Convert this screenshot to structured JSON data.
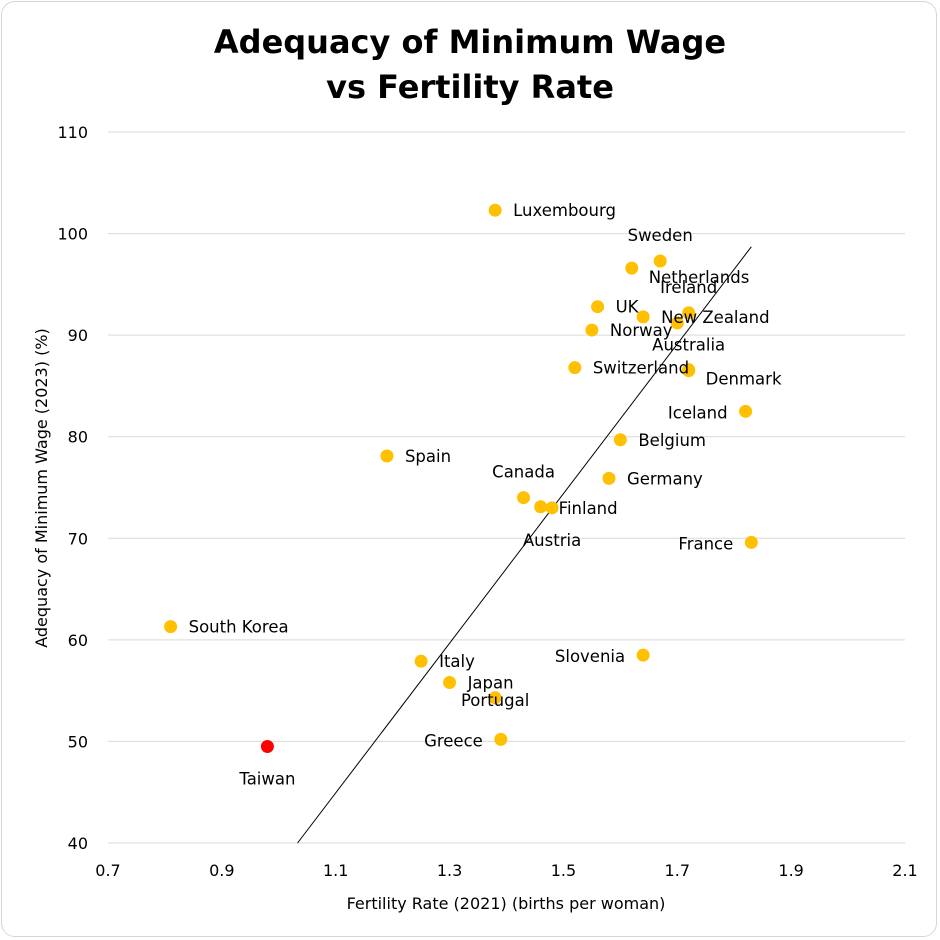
{
  "chart_data": {
    "type": "scatter",
    "title": [
      "Adequacy of Minimum Wage",
      "vs Fertility Rate"
    ],
    "xlabel": "Fertility Rate (2021) (births per woman)",
    "ylabel": "Adequacy of Minimum Wage (2023) (%)",
    "xlim": [
      0.7,
      2.1
    ],
    "ylim": [
      40,
      110
    ],
    "xticks": [
      "0.7",
      "0.9",
      "1.1",
      "1.3",
      "1.5",
      "1.7",
      "1.9",
      "2.1"
    ],
    "yticks": [
      "40",
      "50",
      "60",
      "70",
      "80",
      "90",
      "100",
      "110"
    ],
    "grid": true,
    "colors": {
      "point": "#FFC000",
      "highlight": "#FF0000",
      "highlight_label": "#FF0000",
      "trendline": "#000000"
    },
    "points": [
      {
        "label": "Luxembourg",
        "x": 1.38,
        "y": 102.3,
        "pos": "right"
      },
      {
        "label": "Sweden",
        "x": 1.67,
        "y": 97.3,
        "pos": "above"
      },
      {
        "label": "Netherlands",
        "x": 1.62,
        "y": 96.6,
        "pos": "right-below"
      },
      {
        "label": "Ireland",
        "x": 1.72,
        "y": 92.2,
        "pos": "above"
      },
      {
        "label": "UK",
        "x": 1.56,
        "y": 92.8,
        "pos": "right"
      },
      {
        "label": "New Zealand",
        "x": 1.64,
        "y": 91.8,
        "pos": "right"
      },
      {
        "label": "",
        "x": 1.7,
        "y": 91.2,
        "pos": "none"
      },
      {
        "label": "Norway",
        "x": 1.55,
        "y": 90.5,
        "pos": "right"
      },
      {
        "label": "Australia",
        "x": 1.72,
        "y": 86.5,
        "pos": "above"
      },
      {
        "label": "Switzerland",
        "x": 1.52,
        "y": 86.8,
        "pos": "right"
      },
      {
        "label": "Denmark",
        "x": 1.72,
        "y": 86.6,
        "pos": "right-below"
      },
      {
        "label": "Iceland",
        "x": 1.82,
        "y": 82.5,
        "pos": "left"
      },
      {
        "label": "Belgium",
        "x": 1.6,
        "y": 79.7,
        "pos": "right"
      },
      {
        "label": "Spain",
        "x": 1.19,
        "y": 78.1,
        "pos": "right"
      },
      {
        "label": "Canada",
        "x": 1.43,
        "y": 74.0,
        "pos": "above"
      },
      {
        "label": "Germany",
        "x": 1.58,
        "y": 75.9,
        "pos": "right"
      },
      {
        "label": "Finland",
        "x": 1.46,
        "y": 73.1,
        "pos": "right-offset"
      },
      {
        "label": "Austria",
        "x": 1.48,
        "y": 73.0,
        "pos": "below"
      },
      {
        "label": "France",
        "x": 1.83,
        "y": 69.6,
        "pos": "left"
      },
      {
        "label": "South Korea",
        "x": 0.81,
        "y": 61.3,
        "pos": "right"
      },
      {
        "label": "Slovenia",
        "x": 1.64,
        "y": 58.5,
        "pos": "left"
      },
      {
        "label": "Italy",
        "x": 1.25,
        "y": 57.9,
        "pos": "right"
      },
      {
        "label": "Japan",
        "x": 1.3,
        "y": 55.8,
        "pos": "right"
      },
      {
        "label": "Portugal",
        "x": 1.38,
        "y": 54.3,
        "pos": "center"
      },
      {
        "label": "Greece",
        "x": 1.39,
        "y": 50.2,
        "pos": "left"
      },
      {
        "label": "Taiwan",
        "x": 0.98,
        "y": 49.5,
        "pos": "below",
        "highlight": true
      }
    ],
    "trendline": {
      "x": [
        1.033,
        1.83
      ],
      "y": [
        40,
        98.7
      ]
    }
  }
}
